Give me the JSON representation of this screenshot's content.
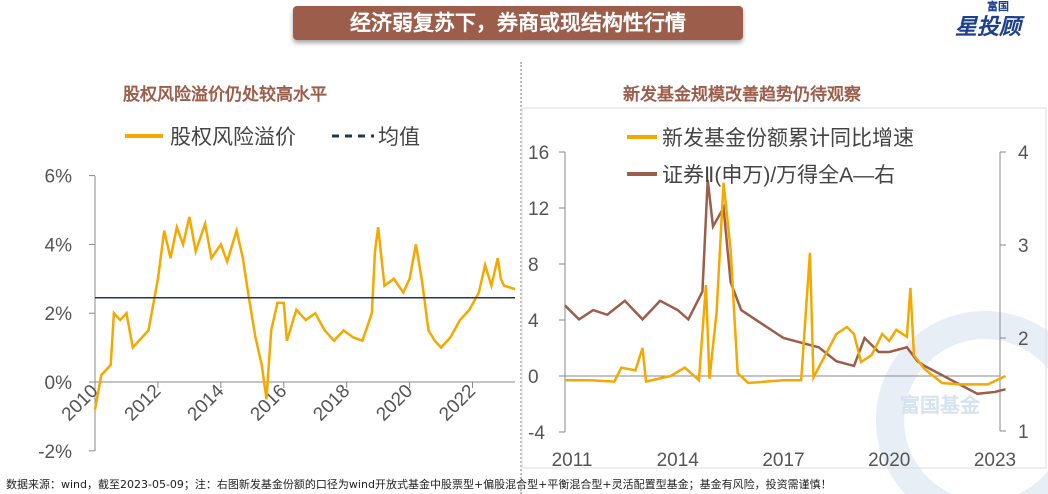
{
  "banner": {
    "title": "经济弱复苏下，券商或现结构性行情"
  },
  "logo": {
    "small": "富国",
    "big": "星投顾"
  },
  "watermark": "富国基金",
  "footer": {
    "source": "数据来源：wind，截至2023-05-09；注：右图新发基金份额的口径为wind开放式基金中股票型+偏股混合型+平衡混合型+灵活配置型基金；基金有风险，投资需谨慎！"
  },
  "colors": {
    "orange": "#f5a800",
    "brown": "#9c5e4b",
    "navy": "#1f3a4f"
  },
  "chart_data": [
    {
      "type": "line",
      "title": "股权风险溢价仍处较高水平",
      "legend_placement": "top",
      "yticks": [
        "6%",
        "4%",
        "2%",
        "0%",
        "-2%"
      ],
      "ylim": [
        -2,
        6
      ],
      "xticks": [
        "2010",
        "2012",
        "2014",
        "2016",
        "2018",
        "2020",
        "2022"
      ],
      "xlim": [
        2010,
        2023.35
      ],
      "series": [
        {
          "name": "股权风险溢价",
          "color": "#f5a800",
          "x": [
            2010.0,
            2010.2,
            2010.5,
            2010.6,
            2010.8,
            2011.0,
            2011.2,
            2011.5,
            2011.7,
            2011.9,
            2012.0,
            2012.2,
            2012.4,
            2012.6,
            2012.8,
            2013.0,
            2013.2,
            2013.5,
            2013.7,
            2014.0,
            2014.2,
            2014.5,
            2014.7,
            2014.9,
            2015.1,
            2015.3,
            2015.45,
            2015.6,
            2015.8,
            2016.0,
            2016.1,
            2016.4,
            2016.7,
            2017.0,
            2017.3,
            2017.6,
            2017.9,
            2018.2,
            2018.5,
            2018.8,
            2018.9,
            2019.0,
            2019.2,
            2019.5,
            2019.8,
            2020.0,
            2020.2,
            2020.4,
            2020.6,
            2020.8,
            2021.0,
            2021.3,
            2021.6,
            2021.9,
            2022.2,
            2022.4,
            2022.6,
            2022.8,
            2022.9,
            2023.0,
            2023.35
          ],
          "y": [
            -0.8,
            0.2,
            0.5,
            2.0,
            1.8,
            2.0,
            1.0,
            1.3,
            1.5,
            2.5,
            3.0,
            4.4,
            3.6,
            4.5,
            4.0,
            4.8,
            3.8,
            4.6,
            3.6,
            4.0,
            3.5,
            4.4,
            3.6,
            2.4,
            1.3,
            0.5,
            -0.5,
            1.5,
            2.3,
            2.3,
            1.2,
            2.1,
            1.8,
            2.0,
            1.5,
            1.2,
            1.5,
            1.3,
            1.2,
            2.0,
            3.8,
            4.5,
            2.8,
            3.0,
            2.6,
            3.0,
            4.0,
            2.9,
            1.5,
            1.2,
            1.0,
            1.3,
            1.8,
            2.1,
            2.6,
            3.4,
            2.8,
            3.6,
            3.0,
            2.8,
            2.7
          ]
        },
        {
          "name": "均值",
          "color": "#1f3a4f",
          "dashed": true,
          "x": [
            2010,
            2023.35
          ],
          "y": [
            2.45,
            2.45
          ]
        }
      ]
    },
    {
      "type": "line",
      "title": "新发基金规模改善趋势仍待观察",
      "legend_placement": "top",
      "yticks_left": [
        "16",
        "12",
        "8",
        "4",
        "0",
        "-4"
      ],
      "ylim_left": [
        -4,
        16
      ],
      "yticks_right": [
        "4",
        "3",
        "2",
        "1"
      ],
      "ylim_right": [
        1,
        4
      ],
      "xticks": [
        "2011",
        "2014",
        "2017",
        "2020",
        "2023"
      ],
      "xlim": [
        2010.8,
        2023.35
      ],
      "series": [
        {
          "name": "新发基金份额累计同比增速",
          "axis": "left",
          "color": "#f5a800",
          "x": [
            2010.8,
            2011.5,
            2012.2,
            2012.4,
            2012.8,
            2013.0,
            2013.1,
            2013.8,
            2014.2,
            2014.6,
            2014.8,
            2014.9,
            2015.1,
            2015.3,
            2015.5,
            2015.7,
            2016.0,
            2017.0,
            2017.5,
            2017.75,
            2017.85,
            2018.5,
            2018.8,
            2019.0,
            2019.2,
            2019.5,
            2019.8,
            2020.0,
            2020.2,
            2020.5,
            2020.6,
            2020.7,
            2021.0,
            2021.5,
            2022.0,
            2022.8,
            2023.3
          ],
          "y": [
            -0.3,
            -0.3,
            -0.4,
            0.6,
            0.4,
            2.0,
            -0.4,
            0,
            0.6,
            -0.3,
            6.5,
            -0.2,
            4.5,
            13.8,
            9,
            0.2,
            -0.5,
            -0.3,
            -0.3,
            8.8,
            -0.1,
            3,
            3.5,
            3,
            1,
            1.5,
            3,
            2.5,
            3.3,
            2.8,
            6.3,
            1.5,
            0.5,
            -0.5,
            -0.6,
            -0.6,
            0
          ]
        },
        {
          "name": "证券Ⅱ(申万)/万得全A—右",
          "axis": "right",
          "color": "#9c5e4b",
          "x": [
            2010.8,
            2011.2,
            2011.6,
            2012.0,
            2012.5,
            2013.0,
            2013.5,
            2014.0,
            2014.3,
            2014.7,
            2014.85,
            2015.0,
            2015.3,
            2015.5,
            2015.8,
            2016.2,
            2017.0,
            2017.5,
            2018.0,
            2018.5,
            2019.0,
            2019.3,
            2019.7,
            2020.0,
            2020.5,
            2020.8,
            2021.0,
            2021.5,
            2022.0,
            2022.5,
            2023.0,
            2023.3
          ],
          "y": [
            2.35,
            2.2,
            2.3,
            2.25,
            2.4,
            2.2,
            2.4,
            2.3,
            2.2,
            2.5,
            3.7,
            3.2,
            3.4,
            2.6,
            2.3,
            2.2,
            2.0,
            1.95,
            1.9,
            1.75,
            1.7,
            2.0,
            1.85,
            1.85,
            1.9,
            1.75,
            1.7,
            1.6,
            1.5,
            1.4,
            1.42,
            1.45
          ]
        }
      ]
    }
  ]
}
